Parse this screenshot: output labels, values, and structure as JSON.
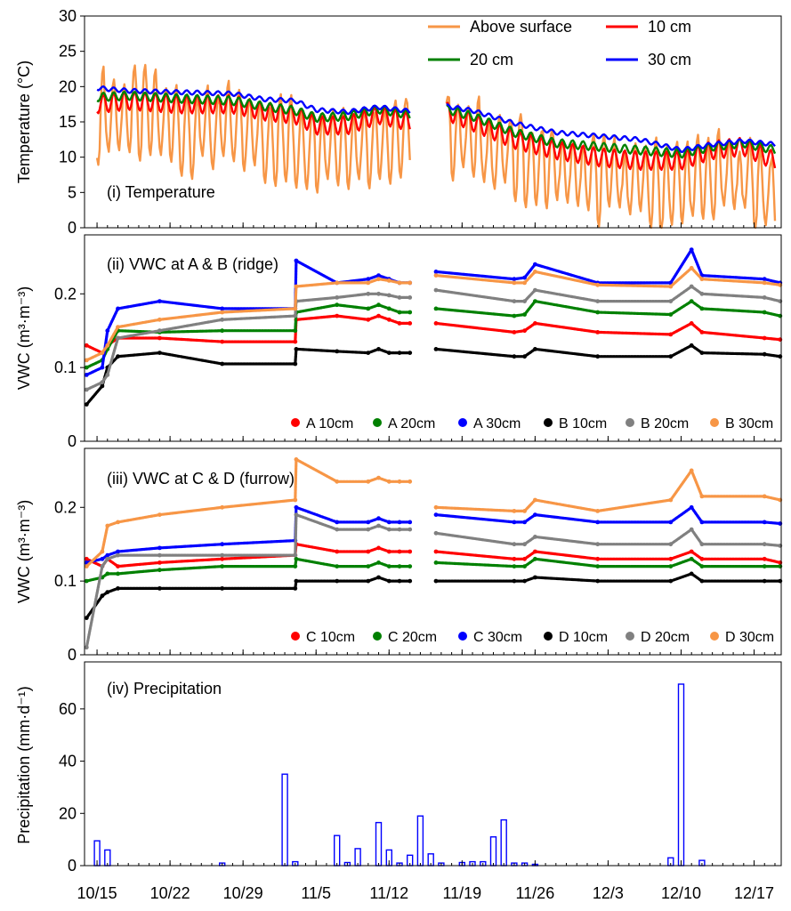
{
  "x_axis": {
    "ticks": [
      {
        "day": 0,
        "label": "10/15"
      },
      {
        "day": 7,
        "label": "10/22"
      },
      {
        "day": 14,
        "label": "10/29"
      },
      {
        "day": 21,
        "label": "11/5"
      },
      {
        "day": 28,
        "label": "11/12"
      },
      {
        "day": 35,
        "label": "11/19"
      },
      {
        "day": 42,
        "label": "11/26"
      },
      {
        "day": 49,
        "label": "12/3"
      },
      {
        "day": 56,
        "label": "12/10"
      },
      {
        "day": 63,
        "label": "12/17"
      }
    ],
    "range": [
      -1.2,
      65.6
    ]
  },
  "chart_data": [
    {
      "type": "line",
      "panel_title": "(i) Temperature",
      "ylabel": "Temperature (°C)",
      "ylim": [
        0,
        30
      ],
      "yticks": [
        0,
        5,
        10,
        15,
        20,
        25,
        30
      ],
      "gap": [
        30,
        33.5
      ],
      "legend_placement": "top-right",
      "series": [
        {
          "name": "Above surface",
          "color": "#f79646",
          "width": 2.4,
          "daily_amp": 5.5,
          "x": [
            0,
            2,
            5,
            8,
            10,
            13,
            16,
            19,
            21,
            23,
            26,
            28,
            30,
            33.5,
            36,
            40,
            43,
            47,
            50,
            53,
            56,
            59,
            62,
            65
          ],
          "y": [
            16,
            16,
            16,
            14,
            14,
            14,
            13,
            12,
            12,
            12,
            12,
            13,
            13,
            14,
            12,
            10,
            9,
            7,
            7,
            6,
            6,
            7,
            7,
            5
          ]
        },
        {
          "name": "10 cm",
          "color": "#ff0000",
          "width": 2.4,
          "daily_amp": 1.3,
          "x": [
            0,
            3,
            8,
            13,
            16,
            19,
            21,
            24,
            27,
            30,
            33.5,
            36,
            40,
            44,
            48,
            52,
            56,
            59,
            62,
            65
          ],
          "y": [
            17.5,
            18,
            17.5,
            17.5,
            16.5,
            16,
            14.5,
            14.5,
            16,
            15,
            16.5,
            15,
            12.5,
            11,
            10,
            9.5,
            9.5,
            11,
            11.5,
            9.5
          ]
        },
        {
          "name": "20 cm",
          "color": "#008000",
          "width": 2.4,
          "daily_amp": 0.6,
          "x": [
            0,
            3,
            8,
            13,
            16,
            19,
            21,
            24,
            27,
            30,
            33.5,
            36,
            40,
            44,
            48,
            52,
            56,
            59,
            62,
            65
          ],
          "y": [
            18.5,
            18.7,
            18.3,
            18,
            17.2,
            16.6,
            15.6,
            15.8,
            16.8,
            16,
            16.8,
            15.8,
            13.5,
            12,
            11.5,
            11,
            10.5,
            11.5,
            12,
            11
          ]
        },
        {
          "name": "30 cm",
          "color": "#0000ff",
          "width": 2.4,
          "daily_amp": 0.3,
          "x": [
            0,
            3,
            8,
            13,
            16,
            19,
            21,
            24,
            27,
            30,
            33.5,
            36,
            40,
            44,
            48,
            52,
            56,
            59,
            62,
            65
          ],
          "y": [
            19.8,
            19.4,
            19.2,
            19,
            18.2,
            18,
            16.7,
            16.4,
            17.1,
            16.5,
            17.2,
            16.6,
            14.8,
            13.5,
            13,
            12.5,
            11,
            11.8,
            12.3,
            11.8
          ]
        }
      ]
    },
    {
      "type": "scatter",
      "panel_title": "(ii) VWC at A & B (ridge)",
      "ylabel": "VWC (m³·m⁻³)",
      "ylim": [
        0,
        0.28
      ],
      "yticks": [
        0,
        0.1,
        0.2
      ],
      "gap": [
        30,
        32.5
      ],
      "legend_placement": "bottom-right",
      "series": [
        {
          "name": "A 10cm",
          "color": "#ff0000",
          "x": [
            -1,
            0.5,
            1,
            2,
            6,
            12,
            19,
            19.1,
            23,
            26,
            27,
            28,
            29,
            30,
            32.5,
            40,
            41,
            42,
            48,
            55,
            57,
            58,
            64,
            65.5
          ],
          "y": [
            0.13,
            0.12,
            0.13,
            0.14,
            0.14,
            0.135,
            0.135,
            0.165,
            0.17,
            0.165,
            0.17,
            0.165,
            0.16,
            0.16,
            0.16,
            0.148,
            0.15,
            0.16,
            0.148,
            0.145,
            0.16,
            0.148,
            0.14,
            0.138
          ]
        },
        {
          "name": "A 20cm",
          "color": "#008000",
          "x": [
            -1,
            0.5,
            1,
            2,
            6,
            12,
            19,
            19.1,
            23,
            26,
            27,
            28,
            29,
            30,
            32.5,
            40,
            41,
            42,
            48,
            55,
            57,
            58,
            64,
            65.5
          ],
          "y": [
            0.1,
            0.11,
            0.125,
            0.15,
            0.148,
            0.15,
            0.15,
            0.175,
            0.185,
            0.18,
            0.185,
            0.18,
            0.175,
            0.175,
            0.18,
            0.17,
            0.172,
            0.19,
            0.175,
            0.172,
            0.19,
            0.18,
            0.175,
            0.17
          ]
        },
        {
          "name": "A 30cm",
          "color": "#0000ff",
          "x": [
            -1,
            0.5,
            1,
            2,
            6,
            12,
            19,
            19.1,
            23,
            26,
            27,
            28,
            29,
            30,
            32.5,
            40,
            41,
            42,
            48,
            55,
            57,
            58,
            64,
            65.5
          ],
          "y": [
            0.09,
            0.1,
            0.15,
            0.18,
            0.19,
            0.18,
            0.18,
            0.245,
            0.215,
            0.22,
            0.225,
            0.22,
            0.215,
            0.215,
            0.23,
            0.22,
            0.222,
            0.24,
            0.215,
            0.215,
            0.26,
            0.225,
            0.22,
            0.215
          ]
        },
        {
          "name": "B 10cm",
          "color": "#000000",
          "x": [
            -1,
            0.5,
            1,
            2,
            6,
            12,
            19,
            19.1,
            23,
            26,
            27,
            28,
            29,
            30,
            32.5,
            40,
            41,
            42,
            48,
            55,
            57,
            58,
            64,
            65.5
          ],
          "y": [
            0.05,
            0.075,
            0.1,
            0.115,
            0.12,
            0.105,
            0.105,
            0.125,
            0.122,
            0.12,
            0.125,
            0.12,
            0.12,
            0.12,
            0.125,
            0.115,
            0.115,
            0.125,
            0.115,
            0.115,
            0.13,
            0.12,
            0.118,
            0.115
          ]
        },
        {
          "name": "B 20cm",
          "color": "#808080",
          "x": [
            -1,
            0.5,
            1,
            2,
            6,
            12,
            19,
            19.1,
            23,
            26,
            27,
            28,
            29,
            30,
            32.5,
            40,
            41,
            42,
            48,
            55,
            57,
            58,
            64,
            65.5
          ],
          "y": [
            0.07,
            0.08,
            0.09,
            0.14,
            0.15,
            0.165,
            0.17,
            0.19,
            0.195,
            0.2,
            0.2,
            0.198,
            0.195,
            0.195,
            0.205,
            0.19,
            0.19,
            0.205,
            0.19,
            0.19,
            0.21,
            0.2,
            0.195,
            0.19
          ]
        },
        {
          "name": "B 30cm",
          "color": "#f79646",
          "x": [
            -1,
            0.5,
            1,
            2,
            6,
            12,
            19,
            19.1,
            23,
            26,
            27,
            28,
            29,
            30,
            32.5,
            40,
            41,
            42,
            48,
            55,
            57,
            58,
            64,
            65.5
          ],
          "y": [
            0.11,
            0.12,
            0.13,
            0.155,
            0.165,
            0.175,
            0.18,
            0.21,
            0.215,
            0.215,
            0.22,
            0.218,
            0.215,
            0.215,
            0.225,
            0.215,
            0.215,
            0.23,
            0.212,
            0.21,
            0.235,
            0.22,
            0.215,
            0.212
          ]
        }
      ]
    },
    {
      "type": "scatter",
      "panel_title": "(iii) VWC at C & D (furrow)",
      "ylabel": "VWC (m³·m⁻³)",
      "ylim": [
        0,
        0.28
      ],
      "yticks": [
        0,
        0.1,
        0.2
      ],
      "gap": [
        30,
        32.5
      ],
      "legend_placement": "bottom-right",
      "series": [
        {
          "name": "C 10cm",
          "color": "#ff0000",
          "x": [
            -1,
            0.5,
            1,
            2,
            6,
            12,
            19,
            19.1,
            23,
            26,
            27,
            28,
            29,
            30,
            32.5,
            40,
            41,
            42,
            48,
            55,
            57,
            58,
            64,
            65.5
          ],
          "y": [
            0.13,
            0.12,
            0.13,
            0.12,
            0.125,
            0.13,
            0.135,
            0.15,
            0.14,
            0.14,
            0.145,
            0.14,
            0.14,
            0.14,
            0.14,
            0.13,
            0.13,
            0.14,
            0.13,
            0.13,
            0.14,
            0.13,
            0.13,
            0.125
          ]
        },
        {
          "name": "C 20cm",
          "color": "#008000",
          "x": [
            -1,
            0.5,
            1,
            2,
            6,
            12,
            19,
            19.1,
            23,
            26,
            27,
            28,
            29,
            30,
            32.5,
            40,
            41,
            42,
            48,
            55,
            57,
            58,
            64,
            65.5
          ],
          "y": [
            0.1,
            0.105,
            0.11,
            0.11,
            0.115,
            0.12,
            0.12,
            0.13,
            0.12,
            0.12,
            0.125,
            0.12,
            0.12,
            0.12,
            0.125,
            0.12,
            0.12,
            0.13,
            0.12,
            0.12,
            0.13,
            0.12,
            0.12,
            0.12
          ]
        },
        {
          "name": "C 30cm",
          "color": "#0000ff",
          "x": [
            -1,
            0.5,
            1,
            2,
            6,
            12,
            19,
            19.1,
            23,
            26,
            27,
            28,
            29,
            30,
            32.5,
            40,
            41,
            42,
            48,
            55,
            57,
            58,
            64,
            65.5
          ],
          "y": [
            0.125,
            0.13,
            0.135,
            0.14,
            0.145,
            0.15,
            0.155,
            0.2,
            0.18,
            0.18,
            0.185,
            0.18,
            0.18,
            0.18,
            0.19,
            0.18,
            0.18,
            0.19,
            0.18,
            0.18,
            0.2,
            0.18,
            0.18,
            0.178
          ]
        },
        {
          "name": "D 10cm",
          "color": "#000000",
          "x": [
            -1,
            0.5,
            1,
            2,
            6,
            12,
            19,
            19.1,
            23,
            26,
            27,
            28,
            29,
            30,
            32.5,
            40,
            41,
            42,
            48,
            55,
            57,
            58,
            64,
            65.5
          ],
          "y": [
            0.05,
            0.08,
            0.085,
            0.09,
            0.09,
            0.09,
            0.09,
            0.1,
            0.1,
            0.1,
            0.105,
            0.1,
            0.1,
            0.1,
            0.1,
            0.1,
            0.1,
            0.105,
            0.1,
            0.1,
            0.11,
            0.1,
            0.1,
            0.1
          ]
        },
        {
          "name": "D 20cm",
          "color": "#808080",
          "x": [
            -1,
            0.5,
            1,
            2,
            6,
            12,
            19,
            19.1,
            23,
            26,
            27,
            28,
            29,
            30,
            32.5,
            40,
            41,
            42,
            48,
            55,
            57,
            58,
            64,
            65.5
          ],
          "y": [
            0.01,
            0.12,
            0.13,
            0.135,
            0.135,
            0.135,
            0.135,
            0.19,
            0.17,
            0.17,
            0.175,
            0.17,
            0.17,
            0.17,
            0.165,
            0.15,
            0.15,
            0.16,
            0.15,
            0.15,
            0.17,
            0.15,
            0.15,
            0.148
          ]
        },
        {
          "name": "D 30cm",
          "color": "#f79646",
          "x": [
            -1,
            0.5,
            1,
            2,
            6,
            12,
            19,
            19.1,
            23,
            26,
            27,
            28,
            29,
            30,
            32.5,
            40,
            41,
            42,
            48,
            55,
            57,
            58,
            64,
            65.5
          ],
          "y": [
            0.12,
            0.14,
            0.175,
            0.18,
            0.19,
            0.2,
            0.21,
            0.265,
            0.235,
            0.235,
            0.24,
            0.235,
            0.235,
            0.235,
            0.2,
            0.195,
            0.195,
            0.21,
            0.195,
            0.21,
            0.25,
            0.215,
            0.215,
            0.21
          ]
        }
      ]
    },
    {
      "type": "bar",
      "panel_title": "(iv) Precipitation",
      "ylabel": "Precipitation (mm·d⁻¹)",
      "ylim": [
        0,
        78
      ],
      "yticks": [
        0,
        20,
        40,
        60
      ],
      "bar_color": "#0000ff",
      "days": [
        0,
        1,
        12,
        18,
        19,
        23,
        24,
        25,
        27,
        28,
        29,
        30,
        31,
        32,
        33,
        35,
        36,
        37,
        38,
        39,
        40,
        41,
        42,
        55,
        56,
        58
      ],
      "values": [
        9.5,
        6,
        1,
        35,
        1.5,
        11.5,
        1.2,
        6.5,
        16.5,
        6,
        1,
        4,
        19,
        4.5,
        1,
        1.2,
        1.5,
        1.5,
        11,
        17.5,
        1,
        1,
        0.5,
        3,
        69.5,
        2
      ]
    }
  ]
}
